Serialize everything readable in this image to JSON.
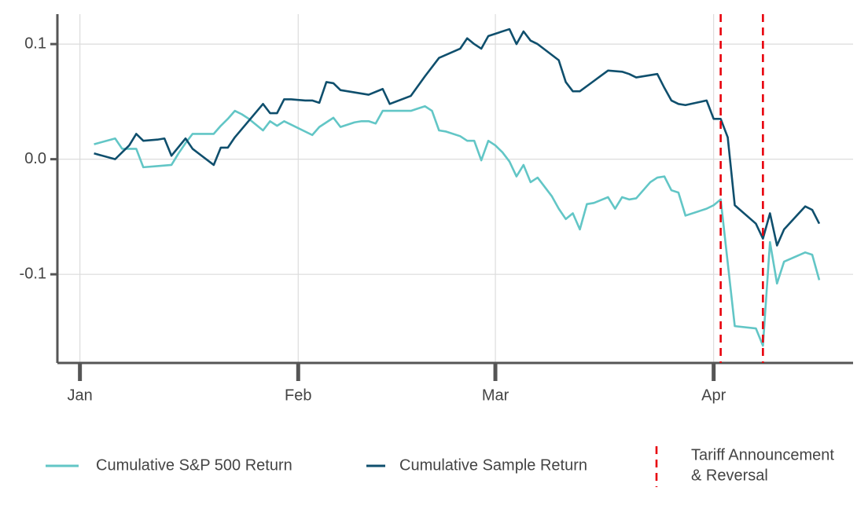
{
  "chart_data": {
    "type": "line",
    "xlim": [
      -2.2,
      110.8
    ],
    "ylim": [
      -0.177,
      0.126
    ],
    "xticks": [
      {
        "value": 1,
        "label": "Jan"
      },
      {
        "value": 32,
        "label": "Feb"
      },
      {
        "value": 60,
        "label": "Mar"
      },
      {
        "value": 91,
        "label": "Apr"
      }
    ],
    "yticks": [
      -0.1,
      {
        "value": 0,
        "label": "0.0"
      },
      0.1
    ],
    "grid": true,
    "legend": "bottom",
    "series": [
      {
        "name": "Cumulative S&P 500 Return",
        "color": "#62c6c6",
        "x": [
          3,
          6,
          7,
          8,
          9,
          10,
          12,
          14,
          15,
          16,
          17,
          18,
          19,
          20,
          21,
          22,
          23,
          24,
          25,
          27,
          28,
          29,
          30,
          31,
          34,
          35,
          37,
          38,
          40,
          41,
          42,
          43,
          44,
          47,
          48,
          49,
          50,
          51,
          52,
          53,
          55,
          56,
          57,
          58,
          59,
          60,
          61,
          62,
          63,
          64,
          65,
          66,
          68,
          69,
          70,
          71,
          72,
          73,
          74,
          76,
          77,
          78,
          79,
          80,
          82,
          83,
          84,
          85,
          86,
          87,
          89,
          90,
          91,
          92,
          94,
          97,
          98,
          99,
          100,
          101,
          104,
          105,
          106
        ],
        "values": [
          0.013,
          0.018,
          0.009,
          0.009,
          0.009,
          -0.007,
          -0.006,
          -0.005,
          0.005,
          0.014,
          0.022,
          0.022,
          0.022,
          0.022,
          0.029,
          0.035,
          0.042,
          0.039,
          0.035,
          0.025,
          0.033,
          0.029,
          0.033,
          0.03,
          0.021,
          0.028,
          0.036,
          0.028,
          0.032,
          0.033,
          0.033,
          0.031,
          0.042,
          0.042,
          0.042,
          0.044,
          0.046,
          0.042,
          0.025,
          0.024,
          0.02,
          0.016,
          0.016,
          -0.001,
          0.016,
          0.012,
          0.006,
          -0.002,
          -0.015,
          -0.005,
          -0.02,
          -0.016,
          -0.032,
          -0.043,
          -0.052,
          -0.047,
          -0.061,
          -0.039,
          -0.038,
          -0.033,
          -0.043,
          -0.033,
          -0.035,
          -0.034,
          -0.02,
          -0.016,
          -0.015,
          -0.027,
          -0.029,
          -0.049,
          -0.045,
          -0.043,
          -0.04,
          -0.035,
          -0.145,
          -0.147,
          -0.162,
          -0.072,
          -0.108,
          -0.089,
          -0.081,
          -0.083,
          -0.105
        ]
      },
      {
        "name": "Cumulative Sample Return",
        "color": "#0f4f6d",
        "x": [
          3,
          6,
          8,
          9,
          10,
          12,
          13,
          14,
          16,
          17,
          20,
          21,
          22,
          23,
          27,
          28,
          29,
          30,
          31,
          33,
          34,
          35,
          36,
          37,
          38,
          42,
          44,
          45,
          48,
          50,
          52,
          55,
          56,
          57,
          58,
          59,
          62,
          63,
          64,
          65,
          66,
          69,
          70,
          71,
          72,
          74,
          76,
          78,
          79,
          80,
          83,
          84,
          85,
          86,
          87,
          90,
          91,
          92,
          93,
          94,
          97,
          98,
          99,
          100,
          101,
          104,
          105,
          106
        ],
        "values": [
          0.005,
          0.0,
          0.012,
          0.022,
          0.016,
          0.017,
          0.018,
          0.003,
          0.018,
          0.009,
          -0.005,
          0.01,
          0.01,
          0.019,
          0.048,
          0.04,
          0.04,
          0.052,
          0.052,
          0.051,
          0.051,
          0.049,
          0.067,
          0.066,
          0.06,
          0.056,
          0.061,
          0.048,
          0.055,
          0.072,
          0.088,
          0.096,
          0.105,
          0.1,
          0.096,
          0.107,
          0.113,
          0.1,
          0.111,
          0.103,
          0.1,
          0.086,
          0.067,
          0.059,
          0.059,
          0.068,
          0.077,
          0.076,
          0.074,
          0.071,
          0.074,
          0.062,
          0.051,
          0.048,
          0.047,
          0.051,
          0.035,
          0.035,
          0.019,
          -0.04,
          -0.056,
          -0.069,
          -0.047,
          -0.075,
          -0.061,
          -0.041,
          -0.044,
          -0.056
        ]
      }
    ],
    "vlines": {
      "x": [
        92,
        98
      ],
      "color": "#e8000b",
      "name": [
        "Tariff Announcement",
        "& Reversal"
      ]
    }
  }
}
